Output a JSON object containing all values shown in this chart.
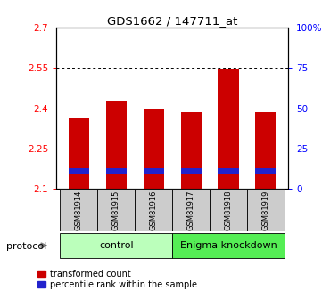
{
  "title": "GDS1662 / 147711_at",
  "samples": [
    "GSM81914",
    "GSM81915",
    "GSM81916",
    "GSM81917",
    "GSM81918",
    "GSM81919"
  ],
  "red_tops": [
    2.362,
    2.43,
    2.4,
    2.385,
    2.545,
    2.385
  ],
  "blue_bottoms": [
    2.155,
    2.155,
    2.155,
    2.155,
    2.155,
    2.155
  ],
  "blue_heights": [
    0.022,
    0.022,
    0.022,
    0.022,
    0.022,
    0.022
  ],
  "bar_base": 2.1,
  "ylim": [
    2.1,
    2.7
  ],
  "yticks_left": [
    2.1,
    2.25,
    2.4,
    2.55,
    2.7
  ],
  "yticks_right_vals": [
    0,
    25,
    50,
    75,
    100
  ],
  "ytick_labels_left": [
    "2.1",
    "2.25",
    "2.4",
    "2.55",
    "2.7"
  ],
  "ytick_labels_right": [
    "0",
    "25",
    "50",
    "75",
    "100%"
  ],
  "hlines": [
    2.25,
    2.4,
    2.55
  ],
  "control_label": "control",
  "knockdown_label": "Enigma knockdown",
  "protocol_label": "protocol",
  "legend_red": "transformed count",
  "legend_blue": "percentile rank within the sample",
  "red_color": "#cc0000",
  "blue_color": "#2222cc",
  "bar_width": 0.55,
  "control_bg": "#bbffbb",
  "knockdown_bg": "#55ee55",
  "sample_bg": "#cccccc",
  "n_control": 3,
  "n_knockdown": 3
}
